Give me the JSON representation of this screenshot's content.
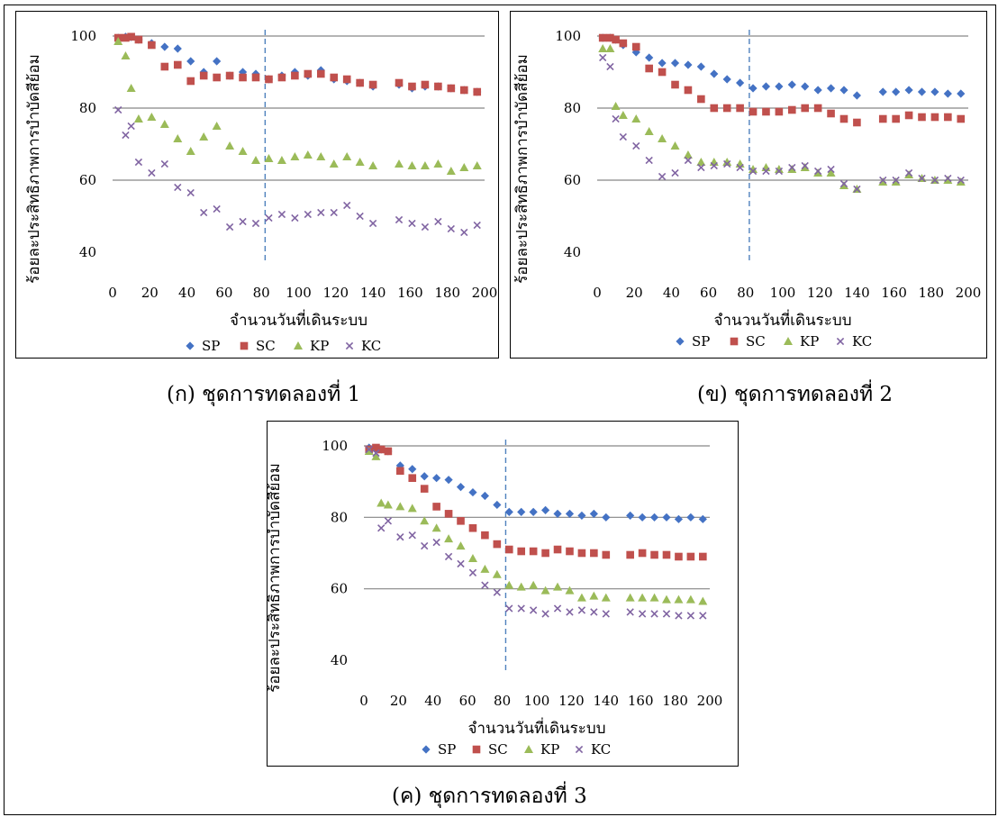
{
  "figure": {
    "captions": [
      "(ก) ชุดการทดลองที่ 1",
      "(ข) ชุดการทดลองที่ 2",
      "(ค) ชุดการทดลองที่ 3"
    ]
  },
  "chart_data": [
    {
      "type": "scatter",
      "xlabel": "จำนวนวันที่เดินระบบ",
      "ylabel": "ร้อยละประสิทธิภาพการบำบัดสีย้อม",
      "xlim": [
        0,
        200
      ],
      "ylim": [
        40,
        100
      ],
      "xticks": [
        0,
        20,
        40,
        60,
        80,
        100,
        120,
        140,
        160,
        180,
        200
      ],
      "yticks": [
        40,
        60,
        80,
        100
      ],
      "grid": "horizontal",
      "reference_line_x": 82,
      "legend": "bottom",
      "series": [
        {
          "name": "SP",
          "color": "#4472C4",
          "marker": "diamond",
          "x": [
            3,
            7,
            10,
            14,
            21,
            28,
            35,
            42,
            49,
            56,
            63,
            70,
            77,
            84,
            91,
            98,
            105,
            112,
            119,
            126,
            133,
            140,
            154,
            161,
            168,
            175,
            182,
            189,
            196
          ],
          "y": [
            99.5,
            99.8,
            99.7,
            99,
            98,
            97,
            96.5,
            93,
            90,
            93,
            89,
            90,
            89.5,
            88,
            89,
            90,
            89,
            90.5,
            88,
            87.5,
            87,
            86,
            86.5,
            85.5,
            86,
            86,
            85.5,
            85,
            84.5
          ]
        },
        {
          "name": "SC",
          "color": "#C0504D",
          "marker": "square",
          "x": [
            3,
            7,
            10,
            14,
            21,
            28,
            35,
            42,
            49,
            56,
            63,
            70,
            77,
            84,
            91,
            98,
            105,
            112,
            119,
            126,
            133,
            140,
            154,
            161,
            168,
            175,
            182,
            189,
            196
          ],
          "y": [
            99.5,
            99.5,
            99.8,
            99,
            97.5,
            91.5,
            92,
            87.5,
            89,
            88.5,
            89,
            88.5,
            88.5,
            88,
            88.5,
            89,
            89.5,
            89.5,
            88.5,
            88,
            87,
            86.5,
            87,
            86,
            86.5,
            86,
            85.5,
            85,
            84.5
          ]
        },
        {
          "name": "KP",
          "color": "#9BBB59",
          "marker": "triangle",
          "x": [
            3,
            7,
            10,
            14,
            21,
            28,
            35,
            42,
            49,
            56,
            63,
            70,
            77,
            84,
            91,
            98,
            105,
            112,
            119,
            126,
            133,
            140,
            154,
            161,
            168,
            175,
            182,
            189,
            196
          ],
          "y": [
            98.5,
            94.5,
            85.5,
            77,
            77.5,
            75.5,
            71.5,
            68,
            72,
            75,
            69.5,
            68,
            65.5,
            66,
            65.5,
            66.5,
            67,
            66.5,
            64.5,
            66.5,
            65,
            64,
            64.5,
            64,
            64,
            64.5,
            62.5,
            63.5,
            64
          ]
        },
        {
          "name": "KC",
          "color": "#8064A2",
          "marker": "x",
          "x": [
            3,
            7,
            10,
            14,
            21,
            28,
            35,
            42,
            49,
            56,
            63,
            70,
            77,
            84,
            91,
            98,
            105,
            112,
            119,
            126,
            133,
            140,
            154,
            161,
            168,
            175,
            182,
            189,
            196
          ],
          "y": [
            79.5,
            72.5,
            75,
            65,
            62,
            64.5,
            58,
            56.5,
            51,
            52,
            47,
            48.5,
            48,
            49.5,
            50.5,
            49.5,
            50.5,
            51,
            51,
            53,
            50,
            48,
            49,
            48,
            47,
            48.5,
            46.5,
            45.5,
            47.5
          ]
        }
      ]
    },
    {
      "type": "scatter",
      "xlabel": "จำนวนวันที่เดินระบบ",
      "ylabel": "ร้อยละประสิทธิภาพการบำบัดสีย้อม",
      "xlim": [
        0,
        200
      ],
      "ylim": [
        40,
        100
      ],
      "xticks": [
        0,
        20,
        40,
        60,
        80,
        100,
        120,
        140,
        160,
        180,
        200
      ],
      "yticks": [
        40,
        60,
        80,
        100
      ],
      "grid": "horizontal",
      "reference_line_x": 82,
      "legend": "bottom",
      "series": [
        {
          "name": "SP",
          "color": "#4472C4",
          "marker": "diamond",
          "x": [
            3,
            7,
            10,
            14,
            21,
            28,
            35,
            42,
            49,
            56,
            63,
            70,
            77,
            84,
            91,
            98,
            105,
            112,
            119,
            126,
            133,
            140,
            154,
            161,
            168,
            175,
            182,
            189,
            196
          ],
          "y": [
            99.5,
            99.5,
            99,
            97.5,
            95.5,
            94,
            92.5,
            92.5,
            92,
            91.5,
            89.5,
            88,
            87,
            85.5,
            86,
            86,
            86.5,
            86,
            85,
            85.5,
            85,
            83.5,
            84.5,
            84.5,
            85,
            84.5,
            84.5,
            84,
            84
          ]
        },
        {
          "name": "SC",
          "color": "#C0504D",
          "marker": "square",
          "x": [
            3,
            7,
            10,
            14,
            21,
            28,
            35,
            42,
            49,
            56,
            63,
            70,
            77,
            84,
            91,
            98,
            105,
            112,
            119,
            126,
            133,
            140,
            154,
            161,
            168,
            175,
            182,
            189,
            196
          ],
          "y": [
            99.5,
            99.5,
            99,
            98,
            97,
            91,
            90,
            86.5,
            85,
            82.5,
            80,
            80,
            80,
            79,
            79,
            79,
            79.5,
            80,
            80,
            78.5,
            77,
            76,
            77,
            77,
            78,
            77.5,
            77.5,
            77.5,
            77
          ]
        },
        {
          "name": "KP",
          "color": "#9BBB59",
          "marker": "triangle",
          "x": [
            3,
            7,
            10,
            14,
            21,
            28,
            35,
            42,
            49,
            56,
            63,
            70,
            77,
            84,
            91,
            98,
            105,
            112,
            119,
            126,
            133,
            140,
            154,
            161,
            168,
            175,
            182,
            189,
            196
          ],
          "y": [
            96.5,
            96.5,
            80.5,
            78,
            77,
            73.5,
            71.5,
            69.5,
            67,
            65,
            65,
            65,
            64.5,
            63,
            63.5,
            63,
            63,
            63.5,
            62,
            62,
            58.5,
            57.5,
            59.5,
            59.5,
            61.5,
            60.5,
            60,
            60,
            59.5
          ]
        },
        {
          "name": "KC",
          "color": "#8064A2",
          "marker": "x",
          "x": [
            3,
            7,
            10,
            14,
            21,
            28,
            35,
            42,
            49,
            56,
            63,
            70,
            77,
            84,
            91,
            98,
            105,
            112,
            119,
            126,
            133,
            140,
            154,
            161,
            168,
            175,
            182,
            189,
            196
          ],
          "y": [
            94,
            91.5,
            77,
            72,
            69.5,
            65.5,
            61,
            62,
            65.5,
            63.5,
            64,
            64.5,
            63.5,
            62.5,
            62.5,
            62.5,
            63.5,
            64,
            62.5,
            63,
            59,
            57.5,
            60,
            60,
            62,
            60.5,
            60,
            60.5,
            60
          ]
        }
      ]
    },
    {
      "type": "scatter",
      "xlabel": "จำนวนวันที่เดินระบบ",
      "ylabel": "ร้อยละประสิทธิภาพการบำบัดสีย้อม",
      "xlim": [
        0,
        200
      ],
      "ylim": [
        40,
        100
      ],
      "xticks": [
        0,
        20,
        40,
        60,
        80,
        100,
        120,
        140,
        160,
        180,
        200
      ],
      "yticks": [
        40,
        60,
        80,
        100
      ],
      "grid": "horizontal",
      "reference_line_x": 82,
      "legend": "bottom",
      "series": [
        {
          "name": "SP",
          "color": "#4472C4",
          "marker": "diamond",
          "x": [
            3,
            7,
            10,
            14,
            21,
            28,
            35,
            42,
            49,
            56,
            63,
            70,
            77,
            84,
            91,
            98,
            105,
            112,
            119,
            126,
            133,
            140,
            154,
            161,
            168,
            175,
            182,
            189,
            196
          ],
          "y": [
            99.5,
            99,
            99,
            98.5,
            94.5,
            93.5,
            91.5,
            91,
            90.5,
            88.5,
            87,
            86,
            83.5,
            81.5,
            81.5,
            81.5,
            82,
            81,
            81,
            80.5,
            81,
            80,
            80.5,
            80,
            80,
            80,
            79.5,
            80,
            79.5
          ]
        },
        {
          "name": "SC",
          "color": "#C0504D",
          "marker": "square",
          "x": [
            3,
            7,
            10,
            14,
            21,
            28,
            35,
            42,
            49,
            56,
            63,
            70,
            77,
            84,
            91,
            98,
            105,
            112,
            119,
            126,
            133,
            140,
            154,
            161,
            168,
            175,
            182,
            189,
            196
          ],
          "y": [
            99,
            99.5,
            99,
            98.5,
            93,
            91,
            88,
            83,
            81,
            79,
            77,
            75,
            72.5,
            71,
            70.5,
            70.5,
            70,
            71,
            70.5,
            70,
            70,
            69.5,
            69.5,
            70,
            69.5,
            69.5,
            69,
            69,
            69
          ]
        },
        {
          "name": "KP",
          "color": "#9BBB59",
          "marker": "triangle",
          "x": [
            3,
            7,
            10,
            14,
            21,
            28,
            35,
            42,
            49,
            56,
            63,
            70,
            77,
            84,
            91,
            98,
            105,
            112,
            119,
            126,
            133,
            140,
            154,
            161,
            168,
            175,
            182,
            189,
            196
          ],
          "y": [
            98.5,
            97,
            84,
            83.5,
            83,
            82.5,
            79,
            77,
            74,
            72,
            68.5,
            65.5,
            64,
            61,
            60.5,
            61,
            59.5,
            60.5,
            59.5,
            57.5,
            58,
            57.5,
            57.5,
            57.5,
            57.5,
            57,
            57,
            57,
            56.5
          ]
        },
        {
          "name": "KC",
          "color": "#8064A2",
          "marker": "x",
          "x": [
            3,
            7,
            10,
            14,
            21,
            28,
            35,
            42,
            49,
            56,
            63,
            70,
            77,
            84,
            91,
            98,
            105,
            112,
            119,
            126,
            133,
            140,
            154,
            161,
            168,
            175,
            182,
            189,
            196
          ],
          "y": [
            99,
            98,
            77,
            79,
            74.5,
            75,
            72,
            73,
            69,
            67,
            64.5,
            61,
            59,
            54.5,
            54.5,
            54,
            53,
            54.5,
            53.5,
            54,
            53.5,
            53,
            53.5,
            53,
            53,
            53,
            52.5,
            52.5,
            52.5
          ]
        }
      ]
    }
  ]
}
